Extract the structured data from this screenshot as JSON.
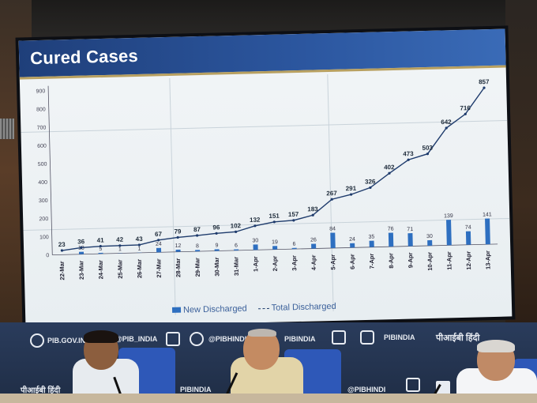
{
  "screen": {
    "title": "Cured Cases",
    "legend_new": "New Discharged",
    "legend_total": "Total Discharged"
  },
  "chart_data": {
    "type": "line",
    "title": "Cured Cases",
    "ylim": [
      0,
      900
    ],
    "yticks": [
      0,
      100,
      200,
      300,
      400,
      500,
      600,
      700,
      800,
      900
    ],
    "categories": [
      "22-Mar",
      "23-Mar",
      "24-Mar",
      "25-Mar",
      "26-Mar",
      "27-Mar",
      "28-Mar",
      "29-Mar",
      "30-Mar",
      "31-Mar",
      "1-Apr",
      "2-Apr",
      "3-Apr",
      "4-Apr",
      "5-Apr",
      "6-Apr",
      "7-Apr",
      "8-Apr",
      "9-Apr",
      "10-Apr",
      "11-Apr",
      "12-Apr",
      "13-Apr"
    ],
    "series": [
      {
        "name": "New Discharged",
        "kind": "bar",
        "color": "#2e6fc0",
        "values": [
          null,
          13,
          5,
          1,
          1,
          24,
          12,
          8,
          9,
          6,
          30,
          19,
          6,
          26,
          84,
          24,
          35,
          76,
          71,
          30,
          139,
          74,
          141
        ]
      },
      {
        "name": "Total Discharged",
        "kind": "line",
        "color": "#1e3b6c",
        "values": [
          23,
          36,
          41,
          42,
          43,
          67,
          79,
          87,
          96,
          102,
          132,
          151,
          157,
          183,
          267,
          291,
          326,
          402,
          473,
          503,
          642,
          716,
          857
        ]
      }
    ],
    "legend": "bottom"
  },
  "banner": {
    "site": "PIB.GOV.IN",
    "handle1": "@PIB_INDIA",
    "handle2": "@PIBHINDI",
    "handle3": "PIBINDIA",
    "handle4": "PIBINDIA",
    "hindi": "पीआईबी हिंदी",
    "hindi2": "पीआईबी हिंदी",
    "handle5": "PIBINDIA",
    "handle6": "@PIBHINDI"
  }
}
